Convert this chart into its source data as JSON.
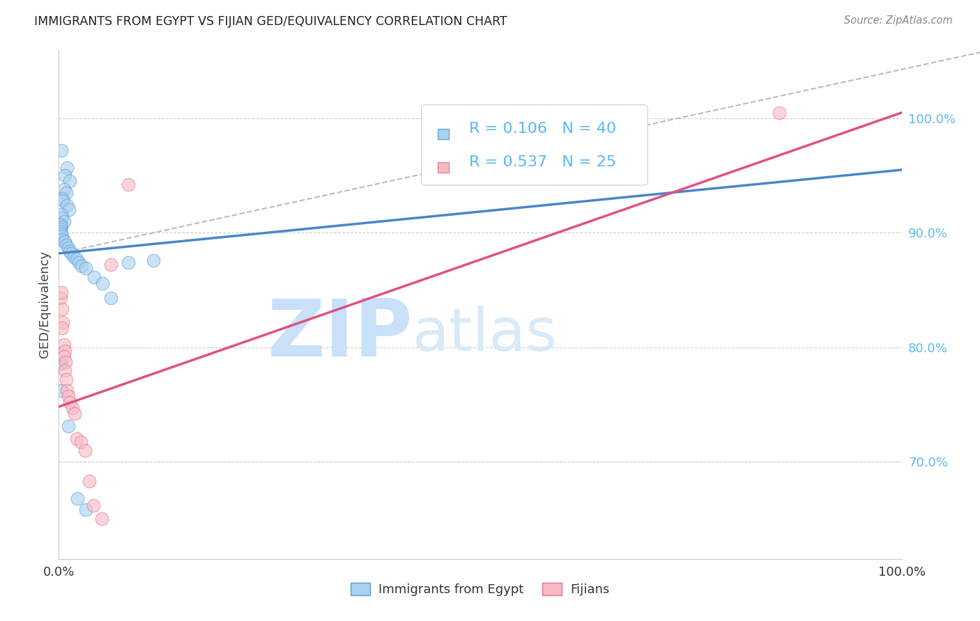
{
  "title": "IMMIGRANTS FROM EGYPT VS FIJIAN GED/EQUIVALENCY CORRELATION CHART",
  "source": "Source: ZipAtlas.com",
  "ylabel": "GED/Equivalency",
  "ytick_labels": [
    "70.0%",
    "80.0%",
    "90.0%",
    "100.0%"
  ],
  "ytick_values": [
    0.7,
    0.8,
    0.9,
    1.0
  ],
  "xtick_positions": [
    0.0,
    0.25,
    0.5,
    0.75,
    1.0
  ],
  "xlim": [
    0.0,
    1.0
  ],
  "ylim": [
    0.615,
    1.06
  ],
  "legend_label_blue": "Immigrants from Egypt",
  "legend_label_pink": "Fijians",
  "blue_color": "#a8d0f0",
  "pink_color": "#f9b8c4",
  "blue_edge_color": "#5b9bd5",
  "pink_edge_color": "#e07090",
  "blue_line_color": "#4a86c8",
  "pink_line_color": "#e05080",
  "dashed_line_color": "#bbbbbb",
  "blue_scatter": [
    [
      0.003,
      0.972
    ],
    [
      0.01,
      0.957
    ],
    [
      0.007,
      0.95
    ],
    [
      0.013,
      0.945
    ],
    [
      0.006,
      0.938
    ],
    [
      0.009,
      0.935
    ],
    [
      0.004,
      0.93
    ],
    [
      0.005,
      0.928
    ],
    [
      0.01,
      0.924
    ],
    [
      0.012,
      0.92
    ],
    [
      0.003,
      0.916
    ],
    [
      0.004,
      0.913
    ],
    [
      0.006,
      0.91
    ],
    [
      0.002,
      0.907
    ],
    [
      0.003,
      0.905
    ],
    [
      0.002,
      0.903
    ],
    [
      0.002,
      0.901
    ],
    [
      0.003,
      0.899
    ],
    [
      0.004,
      0.897
    ],
    [
      0.004,
      0.894
    ],
    [
      0.007,
      0.892
    ],
    [
      0.009,
      0.889
    ],
    [
      0.011,
      0.887
    ],
    [
      0.013,
      0.884
    ],
    [
      0.015,
      0.882
    ],
    [
      0.018,
      0.879
    ],
    [
      0.021,
      0.877
    ],
    [
      0.024,
      0.874
    ],
    [
      0.027,
      0.871
    ],
    [
      0.032,
      0.869
    ],
    [
      0.042,
      0.861
    ],
    [
      0.052,
      0.856
    ],
    [
      0.062,
      0.843
    ],
    [
      0.002,
      0.786
    ],
    [
      0.003,
      0.762
    ],
    [
      0.011,
      0.731
    ],
    [
      0.022,
      0.668
    ],
    [
      0.032,
      0.658
    ],
    [
      0.082,
      0.874
    ],
    [
      0.112,
      0.876
    ]
  ],
  "pink_scatter": [
    [
      0.002,
      0.843
    ],
    [
      0.003,
      0.848
    ],
    [
      0.004,
      0.833
    ],
    [
      0.005,
      0.822
    ],
    [
      0.004,
      0.817
    ],
    [
      0.006,
      0.802
    ],
    [
      0.007,
      0.797
    ],
    [
      0.006,
      0.792
    ],
    [
      0.008,
      0.787
    ],
    [
      0.007,
      0.78
    ],
    [
      0.009,
      0.772
    ],
    [
      0.01,
      0.762
    ],
    [
      0.011,
      0.757
    ],
    [
      0.013,
      0.752
    ],
    [
      0.016,
      0.747
    ],
    [
      0.019,
      0.742
    ],
    [
      0.021,
      0.72
    ],
    [
      0.026,
      0.717
    ],
    [
      0.031,
      0.71
    ],
    [
      0.036,
      0.683
    ],
    [
      0.041,
      0.662
    ],
    [
      0.051,
      0.65
    ],
    [
      0.082,
      0.942
    ],
    [
      0.062,
      0.872
    ],
    [
      0.855,
      1.005
    ]
  ],
  "blue_line_x": [
    0.0,
    1.0
  ],
  "blue_line_y": [
    0.882,
    0.955
  ],
  "pink_line_x": [
    0.0,
    1.0
  ],
  "pink_line_y": [
    0.748,
    1.005
  ],
  "dashed_line_x": [
    0.0,
    1.12
  ],
  "dashed_line_y": [
    0.882,
    1.062
  ],
  "watermark_zip": "ZIP",
  "watermark_atlas": "atlas",
  "watermark_color": "#ddeeff",
  "background_color": "#ffffff"
}
